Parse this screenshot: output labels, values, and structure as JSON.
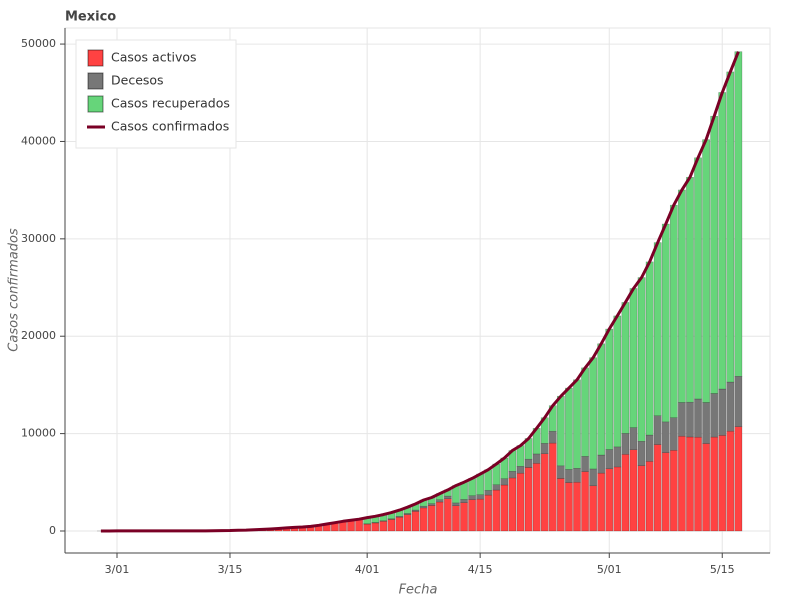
{
  "chart_data": {
    "type": "stacked-bar-line",
    "title": "Mexico",
    "x_label": "Fecha",
    "y_label": "Casos confirmados",
    "x": [
      "2/28",
      "2/29",
      "3/01",
      "3/02",
      "3/03",
      "3/04",
      "3/05",
      "3/06",
      "3/07",
      "3/08",
      "3/09",
      "3/10",
      "3/11",
      "3/12",
      "3/13",
      "3/14",
      "3/15",
      "3/16",
      "3/17",
      "3/18",
      "3/19",
      "3/20",
      "3/21",
      "3/22",
      "3/23",
      "3/24",
      "3/25",
      "3/26",
      "3/27",
      "3/28",
      "3/29",
      "3/30",
      "3/31",
      "4/01",
      "4/02",
      "4/03",
      "4/04",
      "4/05",
      "4/06",
      "4/07",
      "4/08",
      "4/09",
      "4/10",
      "4/11",
      "4/12",
      "4/13",
      "4/14",
      "4/15",
      "4/16",
      "4/17",
      "4/18",
      "4/19",
      "4/20",
      "4/21",
      "4/22",
      "4/23",
      "4/24",
      "4/25",
      "4/26",
      "4/27",
      "4/28",
      "4/29",
      "4/30",
      "5/01",
      "5/02",
      "5/03",
      "5/04",
      "5/05",
      "5/06",
      "5/07",
      "5/08",
      "5/09",
      "5/10",
      "5/11",
      "5/12",
      "5/13",
      "5/14",
      "5/15",
      "5/16",
      "5/17"
    ],
    "series": [
      {
        "name": "Casos activos",
        "kind": "bar",
        "color": "#ff4242",
        "values": [
          1,
          4,
          5,
          5,
          5,
          5,
          5,
          6,
          6,
          7,
          7,
          7,
          8,
          8,
          22,
          37,
          49,
          78,
          89,
          113,
          159,
          197,
          245,
          310,
          359,
          396,
          465,
          573,
          701,
          828,
          969,
          1062,
          1182,
          708,
          827,
          995,
          1178,
          1416,
          1681,
          2011,
          2374,
          2614,
          2978,
          3313,
          2593,
          2910,
          3221,
          3273,
          3686,
          4204,
          4722,
          5450,
          5935,
          6519,
          6947,
          7937,
          9024,
          5388,
          4972,
          5009,
          6097,
          4644,
          5942,
          6390,
          6580,
          7870,
          8345,
          6708,
          7149,
          8874,
          8048,
          8283,
          9733,
          9654,
          9634,
          8976,
          9643,
          9814,
          10251,
          10713
        ]
      },
      {
        "name": "Decesos",
        "kind": "bar",
        "color": "#777777",
        "values": [
          0,
          0,
          0,
          0,
          0,
          0,
          0,
          0,
          0,
          0,
          0,
          0,
          0,
          0,
          0,
          0,
          0,
          0,
          0,
          1,
          1,
          2,
          2,
          2,
          4,
          5,
          6,
          8,
          12,
          16,
          20,
          28,
          29,
          37,
          50,
          60,
          79,
          94,
          125,
          141,
          174,
          194,
          233,
          273,
          296,
          332,
          406,
          449,
          486,
          546,
          650,
          686,
          712,
          857,
          970,
          1069,
          1221,
          1305,
          1351,
          1434,
          1569,
          1732,
          1859,
          1972,
          2061,
          2154,
          2271,
          2507,
          2704,
          2961,
          3160,
          3353,
          3465,
          3573,
          3926,
          4220,
          4477,
          4767,
          5045,
          5177
        ]
      },
      {
        "name": "Casos recuperados",
        "kind": "bar",
        "color": "#66d57a",
        "values": [
          0,
          0,
          0,
          0,
          0,
          0,
          0,
          0,
          0,
          0,
          0,
          0,
          0,
          4,
          4,
          4,
          4,
          4,
          4,
          4,
          4,
          4,
          4,
          4,
          4,
          4,
          4,
          4,
          4,
          4,
          4,
          4,
          4,
          633,
          633,
          633,
          633,
          633,
          633,
          633,
          633,
          633,
          633,
          633,
          1772,
          1772,
          1772,
          2125,
          2125,
          2125,
          2125,
          2125,
          2125,
          2125,
          2627,
          2627,
          2627,
          7149,
          8354,
          9086,
          9086,
          11423,
          11423,
          12377,
          13447,
          13447,
          14289,
          16810,
          17781,
          17781,
          20314,
          21824,
          21824,
          23100,
          24764,
          26990,
          28475,
          30451,
          31848,
          33329
        ]
      },
      {
        "name": "Casos confirmados",
        "kind": "line",
        "color": "#7a0025",
        "values": [
          1,
          4,
          5,
          5,
          5,
          5,
          5,
          6,
          6,
          7,
          7,
          7,
          8,
          12,
          26,
          41,
          53,
          82,
          93,
          118,
          164,
          203,
          251,
          316,
          367,
          405,
          475,
          585,
          717,
          848,
          993,
          1094,
          1215,
          1378,
          1510,
          1688,
          1890,
          2143,
          2439,
          2785,
          3181,
          3441,
          3844,
          4219,
          4661,
          5014,
          5399,
          5847,
          6297,
          6875,
          7497,
          8261,
          8772,
          9501,
          10544,
          11633,
          12872,
          13842,
          14677,
          15529,
          16752,
          17799,
          19224,
          20739,
          22088,
          23471,
          24905,
          26025,
          27634,
          29616,
          31522,
          33460,
          35022,
          36327,
          38324,
          40186,
          42595,
          45032,
          47144,
          49219
        ]
      }
    ],
    "xticks": [
      "3/01",
      "3/15",
      "4/01",
      "4/15",
      "5/01",
      "5/15"
    ],
    "ylim": [
      -2260,
      51650
    ],
    "yticks": [
      0,
      10000,
      20000,
      30000,
      40000,
      50000
    ],
    "grid": true,
    "legend": "top-left"
  }
}
